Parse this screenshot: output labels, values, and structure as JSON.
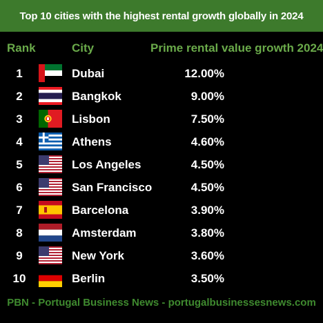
{
  "title": "Top 10 cities with the highest rental growth globally in 2024",
  "headers": {
    "rank": "Rank",
    "city": "City",
    "growth": "Prime rental value growth 2024"
  },
  "rows": [
    {
      "rank": "1",
      "city": "Dubai",
      "value": "12.00%",
      "flag": "uae-flag-icon"
    },
    {
      "rank": "2",
      "city": "Bangkok",
      "value": "9.00%",
      "flag": "thailand-flag-icon"
    },
    {
      "rank": "3",
      "city": "Lisbon",
      "value": "7.50%",
      "flag": "portugal-flag-icon"
    },
    {
      "rank": "4",
      "city": "Athens",
      "value": "4.60%",
      "flag": "greece-flag-icon"
    },
    {
      "rank": "5",
      "city": "Los Angeles",
      "value": "4.50%",
      "flag": "usa-flag-icon"
    },
    {
      "rank": "6",
      "city": "San Francisco",
      "value": "4.50%",
      "flag": "usa-flag-icon"
    },
    {
      "rank": "7",
      "city": "Barcelona",
      "value": "3.90%",
      "flag": "spain-flag-icon"
    },
    {
      "rank": "8",
      "city": "Amsterdam",
      "value": "3.80%",
      "flag": "netherlands-flag-icon"
    },
    {
      "rank": "9",
      "city": "New York",
      "value": "3.60%",
      "flag": "usa-flag-icon"
    },
    {
      "rank": "10",
      "city": "Berlin",
      "value": "3.50%",
      "flag": "germany-flag-icon"
    }
  ],
  "footer": "PBN - Portugal Business News - portugalbusinessesnews.com",
  "colors": {
    "title_bar": "#3d7a2c",
    "header_text": "#6aaa4a",
    "footer_text": "#3f8a2f",
    "background": "#000000"
  }
}
